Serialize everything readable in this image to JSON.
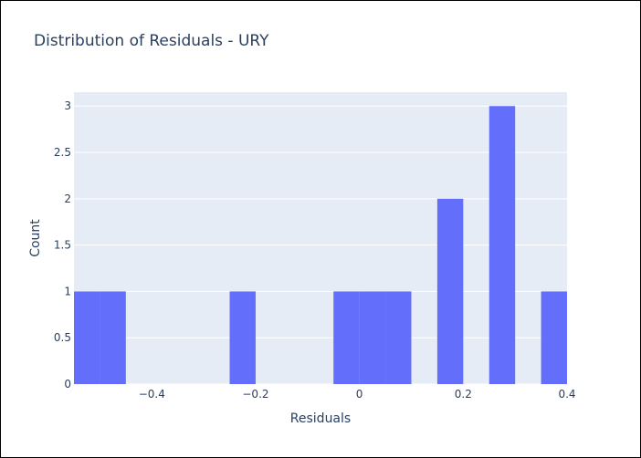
{
  "chart_data": {
    "type": "bar",
    "title": "Distribution of Residuals - URY",
    "xlabel": "Residuals",
    "ylabel": "Count",
    "xlim": [
      -0.55,
      0.4
    ],
    "ylim": [
      0,
      3.15
    ],
    "grid": true,
    "bin_width": 0.05,
    "bins": [
      {
        "x0": -0.55,
        "x1": -0.5,
        "count": 1
      },
      {
        "x0": -0.5,
        "x1": -0.45,
        "count": 1
      },
      {
        "x0": -0.25,
        "x1": -0.2,
        "count": 1
      },
      {
        "x0": -0.05,
        "x1": 0.0,
        "count": 1
      },
      {
        "x0": 0.0,
        "x1": 0.05,
        "count": 1
      },
      {
        "x0": 0.05,
        "x1": 0.1,
        "count": 1
      },
      {
        "x0": 0.15,
        "x1": 0.2,
        "count": 2
      },
      {
        "x0": 0.25,
        "x1": 0.3,
        "count": 3
      },
      {
        "x0": 0.35,
        "x1": 0.4,
        "count": 1
      }
    ],
    "x_ticks": [
      {
        "value": -0.4,
        "label": "−0.4"
      },
      {
        "value": -0.2,
        "label": "−0.2"
      },
      {
        "value": 0,
        "label": "0"
      },
      {
        "value": 0.2,
        "label": "0.2"
      },
      {
        "value": 0.4,
        "label": "0.4"
      }
    ],
    "y_ticks": [
      {
        "value": 0,
        "label": "0"
      },
      {
        "value": 0.5,
        "label": "0.5"
      },
      {
        "value": 1,
        "label": "1"
      },
      {
        "value": 1.5,
        "label": "1.5"
      },
      {
        "value": 2,
        "label": "2"
      },
      {
        "value": 2.5,
        "label": "2.5"
      },
      {
        "value": 3,
        "label": "3"
      }
    ],
    "colors": {
      "bar": "#636efa",
      "plot_bg": "#e5ecf6",
      "grid": "#ffffff",
      "text": "#2a3f5f"
    }
  }
}
